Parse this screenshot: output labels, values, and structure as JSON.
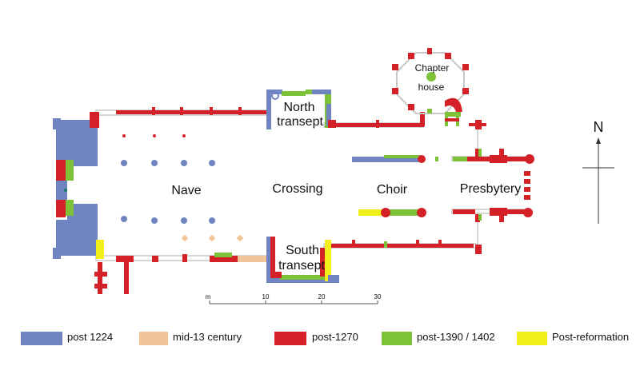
{
  "colors": {
    "post_1224": "#6f84c0",
    "mid_13": "#f2c497",
    "post_1270": "#d42027",
    "post_1390": "#7ec23a",
    "post_reformation": "#f2ee1a",
    "outline": "#c8c8c8"
  },
  "labels": {
    "nave": "Nave",
    "crossing": "Crossing",
    "choir": "Choir",
    "presbytery": "Presbytery",
    "north_transept_1": "North",
    "north_transept_2": "transept",
    "south_transept_1": "South",
    "south_transept_2": "transept",
    "chapter_house_1": "Chapter",
    "chapter_house_2": "house"
  },
  "north_arrow": {
    "label": "N"
  },
  "scale_bar": {
    "unit": "m",
    "ticks": [
      "10",
      "20",
      "30"
    ]
  },
  "legend": [
    {
      "key": "post_1224",
      "label": "post 1224"
    },
    {
      "key": "mid_13",
      "label": "mid-13 century"
    },
    {
      "key": "post_1270",
      "label": "post-1270"
    },
    {
      "key": "post_1390",
      "label": "post-1390 / 1402"
    },
    {
      "key": "post_reformation",
      "label": "Post-reformation"
    }
  ]
}
